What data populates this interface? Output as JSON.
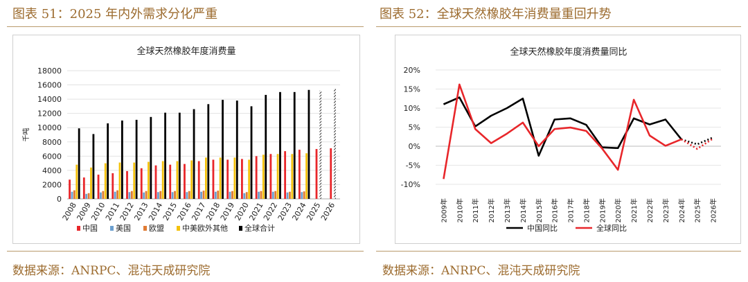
{
  "left": {
    "figure_title": "图表 51：2025 年内外需求分化严重",
    "source": "数据来源：ANRPC、混沌天成研究院"
  },
  "right": {
    "figure_title": "图表 52：全球天然橡胶年消费量重回升势",
    "source": "数据来源：ANRPC、混沌天成研究院"
  },
  "chart_data": [
    {
      "type": "bar",
      "title": "全球天然橡胶年度消费量",
      "ylabel": "千吨",
      "ylim": [
        0,
        18000
      ],
      "yticks": [
        0,
        2000,
        4000,
        6000,
        8000,
        10000,
        12000,
        14000,
        16000,
        18000
      ],
      "categories": [
        "2008",
        "2009",
        "2010",
        "2011",
        "2012",
        "2013",
        "2014",
        "2015",
        "2016",
        "2017",
        "2018",
        "2019",
        "2020",
        "2021",
        "2022",
        "2023",
        "2024",
        "2025",
        "2026"
      ],
      "series": [
        {
          "name": "中国",
          "color": "#e8262a",
          "values": [
            2700,
            3000,
            3400,
            3600,
            3900,
            4300,
            4700,
            4800,
            4900,
            5300,
            5500,
            5500,
            5600,
            6000,
            6300,
            6700,
            6900,
            7000,
            7100
          ]
        },
        {
          "name": "美国",
          "color": "#6b9fcf",
          "values": [
            1000,
            700,
            900,
            1000,
            950,
            900,
            950,
            950,
            950,
            1000,
            1000,
            1000,
            800,
            1000,
            1000,
            900,
            950,
            null,
            null
          ]
        },
        {
          "name": "欧盟",
          "color": "#e07b33",
          "values": [
            1200,
            800,
            1100,
            1200,
            1100,
            1100,
            1100,
            1100,
            1100,
            1150,
            1150,
            1100,
            950,
            1100,
            1100,
            1000,
            1050,
            null,
            null
          ]
        },
        {
          "name": "中美欧外其他",
          "color": "#f4c20d",
          "values": [
            4800,
            4400,
            5000,
            5100,
            5100,
            5200,
            5300,
            5300,
            5400,
            5800,
            5800,
            5800,
            5500,
            6200,
            6300,
            6300,
            6400,
            null,
            null
          ]
        },
        {
          "name": "全球合计",
          "color": "#000000",
          "values": [
            9900,
            9100,
            10600,
            11000,
            11100,
            11500,
            12100,
            12100,
            12600,
            13300,
            13900,
            13800,
            13000,
            14600,
            15000,
            15000,
            15300,
            15200,
            15500
          ],
          "forecast_from": "2025"
        }
      ],
      "legend_position": "bottom"
    },
    {
      "type": "line",
      "title": "全球天然橡胶年度消费量同比",
      "ylim": [
        -10,
        20
      ],
      "yticks": [
        -10,
        -5,
        0,
        5,
        10,
        15,
        20
      ],
      "ytick_labels": [
        "-10%",
        "-5%",
        "0%",
        "5%",
        "10%",
        "15%",
        "20%"
      ],
      "categories": [
        "2009年",
        "2010年",
        "2011年",
        "2012年",
        "2013年",
        "2014年",
        "2015年",
        "2016年",
        "2017年",
        "2018年",
        "2019年",
        "2020年",
        "2021年",
        "2022年",
        "2023年",
        "2024年",
        "2025年",
        "2026年"
      ],
      "series": [
        {
          "name": "中国同比",
          "color": "#000000",
          "values": [
            11.0,
            12.8,
            5.2,
            8.0,
            10.0,
            12.5,
            -2.5,
            7.0,
            7.3,
            5.6,
            -0.3,
            -0.5,
            7.3,
            5.7,
            7.0,
            1.8,
            0.5,
            2.3
          ],
          "forecast_from": "2025年"
        },
        {
          "name": "全球同比",
          "color": "#e8262a",
          "values": [
            -8.6,
            16.2,
            4.5,
            0.8,
            3.3,
            6.2,
            0.0,
            4.5,
            4.9,
            4.0,
            -0.6,
            -6.2,
            12.2,
            2.8,
            0.1,
            1.8,
            -0.7,
            2.0
          ],
          "forecast_from": "2025年"
        }
      ],
      "legend_position": "bottom"
    }
  ]
}
